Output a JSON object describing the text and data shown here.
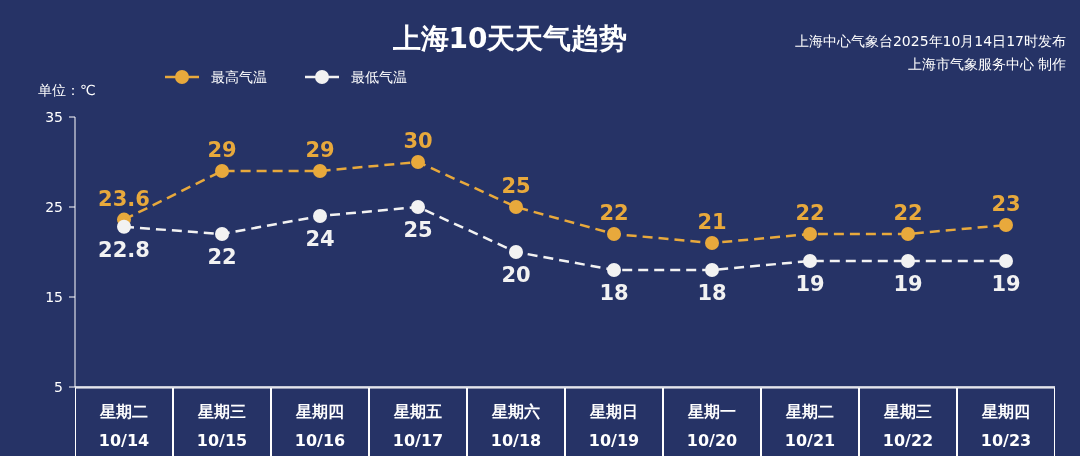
{
  "chart_data": {
    "type": "line",
    "title": "上海10天天气趋势",
    "ylabel": "单位：℃",
    "annotations": [
      "上海中心气象台2025年10月14日17时发布",
      "上海市气象服务中心 制作"
    ],
    "categories": [
      "星期二\n10/14",
      "星期三\n10/15",
      "星期四\n10/16",
      "星期五\n10/17",
      "星期六\n10/18",
      "星期日\n10/19",
      "星期一\n10/20",
      "星期二\n10/21",
      "星期三\n10/22",
      "星期四\n10/23"
    ],
    "series": [
      {
        "name": "最高气温",
        "color": "#e8a93c",
        "values": [
          23.6,
          29,
          29,
          30,
          25,
          22,
          21,
          22,
          22,
          23
        ]
      },
      {
        "name": "最低气温",
        "color": "#f2f2f2",
        "values": [
          22.8,
          22,
          24,
          25,
          20,
          18,
          18,
          19,
          19,
          19
        ]
      }
    ],
    "ylim": [
      5,
      35
    ],
    "yticks": [
      5,
      15,
      25,
      35
    ],
    "grid": false,
    "legend": "top left",
    "marker": "circle",
    "line_style": "dashed",
    "data_labels": true
  }
}
